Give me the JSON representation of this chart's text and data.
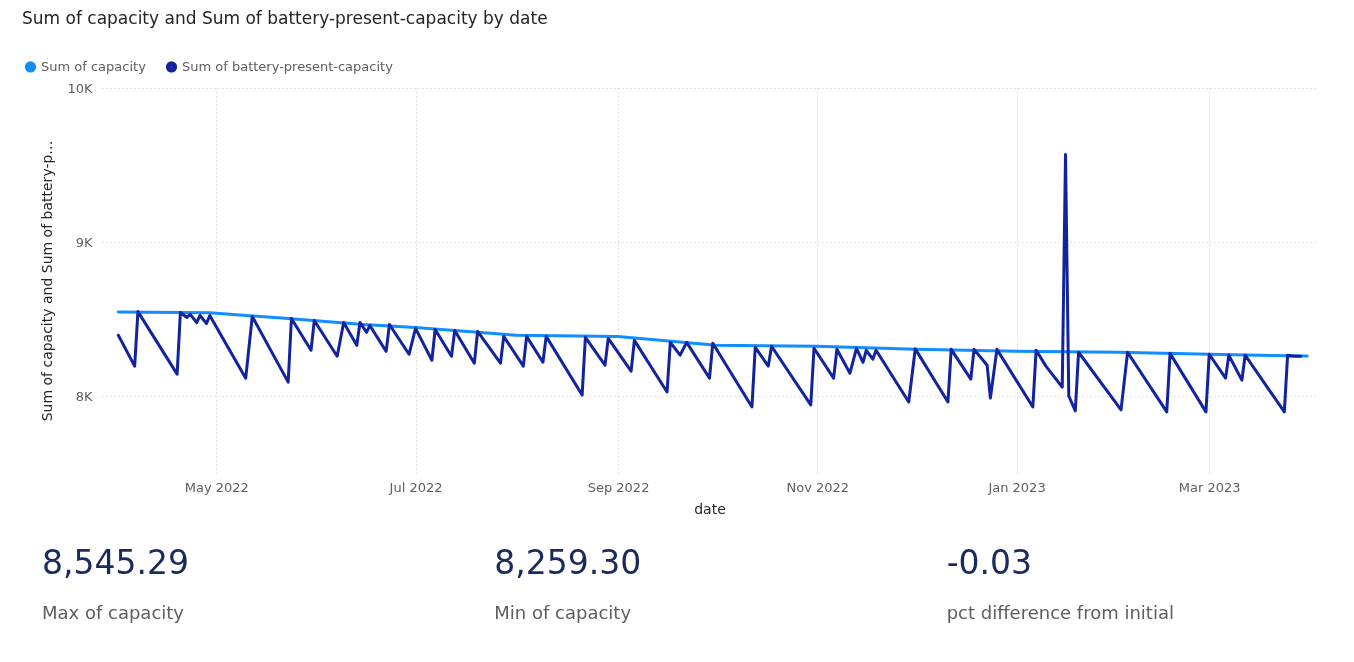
{
  "chart_data": [
    {
      "type": "line",
      "title": "Sum of capacity and Sum of battery-present-capacity by date",
      "xlabel": "date",
      "ylabel": "Sum of capacity and Sum of battery-p…",
      "legend": "top left",
      "grid": true,
      "xlim": [
        "2022-03-27",
        "2023-04-03"
      ],
      "ylim": [
        7500,
        10000
      ],
      "xticks": [
        {
          "value": "2022-05-01",
          "label": "May 2022"
        },
        {
          "value": "2022-07-01",
          "label": "Jul 2022"
        },
        {
          "value": "2022-09-01",
          "label": "Sep 2022"
        },
        {
          "value": "2022-11-01",
          "label": "Nov 2022"
        },
        {
          "value": "2023-01-01",
          "label": "Jan 2023"
        },
        {
          "value": "2023-03-01",
          "label": "Mar 2023"
        }
      ],
      "yticks": [
        {
          "value": 8000,
          "label": "8K"
        },
        {
          "value": 9000,
          "label": "9K"
        },
        {
          "value": 10000,
          "label": "10K"
        }
      ],
      "series": [
        {
          "name": "Sum of capacity",
          "color": "#118dff",
          "x": [
            "2022-04-01",
            "2022-04-29",
            "2022-05-23",
            "2022-06-15",
            "2022-07-01",
            "2022-08-01",
            "2022-09-01",
            "2022-10-01",
            "2022-11-01",
            "2022-12-01",
            "2023-01-01",
            "2023-02-01",
            "2023-03-01",
            "2023-03-31"
          ],
          "values": [
            8545,
            8540,
            8503,
            8465,
            8445,
            8394,
            8387,
            8329,
            8323,
            8303,
            8290,
            8284,
            8271,
            8259
          ]
        },
        {
          "name": "Sum of battery-present-capacity",
          "color": "#12239e",
          "x": [
            "2022-04-01",
            "2022-04-06",
            "2022-04-07",
            "2022-04-19",
            "2022-04-20",
            "2022-04-22",
            "2022-04-23",
            "2022-04-25",
            "2022-04-26",
            "2022-04-28",
            "2022-04-29",
            "2022-05-10",
            "2022-05-12",
            "2022-05-23",
            "2022-05-24",
            "2022-05-30",
            "2022-05-31",
            "2022-06-07",
            "2022-06-09",
            "2022-06-13",
            "2022-06-14",
            "2022-06-16",
            "2022-06-17",
            "2022-06-22",
            "2022-06-23",
            "2022-06-29",
            "2022-07-01",
            "2022-07-06",
            "2022-07-07",
            "2022-07-12",
            "2022-07-13",
            "2022-07-19",
            "2022-07-20",
            "2022-07-27",
            "2022-07-28",
            "2022-08-03",
            "2022-08-04",
            "2022-08-09",
            "2022-08-10",
            "2022-08-21",
            "2022-08-22",
            "2022-08-28",
            "2022-08-29",
            "2022-09-05",
            "2022-09-06",
            "2022-09-16",
            "2022-09-17",
            "2022-09-20",
            "2022-09-22",
            "2022-09-29",
            "2022-09-30",
            "2022-10-12",
            "2022-10-13",
            "2022-10-17",
            "2022-10-18",
            "2022-10-30",
            "2022-10-31",
            "2022-11-06",
            "2022-11-07",
            "2022-11-11",
            "2022-11-13",
            "2022-11-15",
            "2022-11-16",
            "2022-11-18",
            "2022-11-19",
            "2022-11-29",
            "2022-12-01",
            "2022-12-11",
            "2022-12-12",
            "2022-12-18",
            "2022-12-19",
            "2022-12-23",
            "2022-12-24",
            "2022-12-26",
            "2023-01-06",
            "2023-01-07",
            "2023-01-10",
            "2023-01-15",
            "2023-01-16",
            "2023-01-17",
            "2023-01-19",
            "2023-01-20",
            "2023-02-02",
            "2023-02-04",
            "2023-02-16",
            "2023-02-17",
            "2023-02-28",
            "2023-03-01",
            "2023-03-06",
            "2023-03-07",
            "2023-03-11",
            "2023-03-12",
            "2023-03-24",
            "2023-03-25",
            "2023-03-27",
            "2023-03-29"
          ],
          "values": [
            8394,
            8194,
            8548,
            8142,
            8542,
            8510,
            8530,
            8477,
            8523,
            8471,
            8523,
            8116,
            8516,
            8090,
            8503,
            8297,
            8490,
            8258,
            8477,
            8329,
            8477,
            8413,
            8458,
            8290,
            8464,
            8271,
            8439,
            8232,
            8432,
            8258,
            8426,
            8213,
            8419,
            8213,
            8387,
            8194,
            8387,
            8219,
            8387,
            8006,
            8381,
            8200,
            8374,
            8161,
            8361,
            8026,
            8348,
            8265,
            8348,
            8116,
            8342,
            7929,
            8316,
            8194,
            8323,
            7942,
            8310,
            8116,
            8303,
            8148,
            8310,
            8219,
            8297,
            8239,
            8297,
            7961,
            8306,
            7961,
            8303,
            8110,
            8303,
            8200,
            7987,
            8303,
            7929,
            8297,
            8194,
            8058,
            9568,
            8000,
            7903,
            8284,
            7910,
            8284,
            7897,
            8277,
            7897,
            8271,
            8116,
            8265,
            8103,
            8265,
            7897,
            8265,
            8258,
            8258
          ]
        }
      ]
    },
    {
      "type": "other",
      "annotations": [
        "8,545.29",
        "Max of capacity",
        "8,259.30",
        "Min of capacity",
        "-0.03",
        "pct difference from initial"
      ]
    }
  ]
}
